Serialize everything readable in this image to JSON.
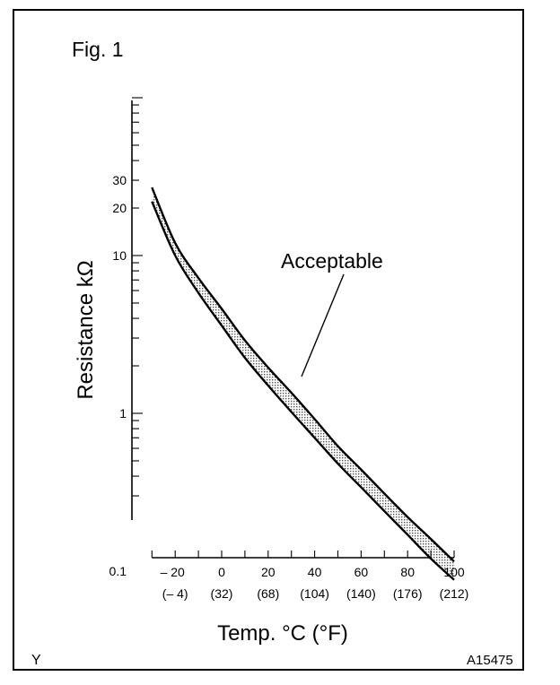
{
  "figure": {
    "label": "Fig. 1",
    "corner_left": "Y",
    "corner_right": "A15475"
  },
  "chart_data": {
    "type": "area",
    "ylabel": "Resistance kΩ",
    "xlabel": "Temp. °C (°F)",
    "yscale": "log",
    "ylim": [
      0.1,
      100
    ],
    "y_ticks": [
      {
        "value": 0.1,
        "label": "0.1"
      },
      {
        "value": 1,
        "label": "1"
      },
      {
        "value": 10,
        "label": "10"
      },
      {
        "value": 20,
        "label": "20"
      },
      {
        "value": 30,
        "label": "30"
      }
    ],
    "xlim": [
      -30,
      100
    ],
    "x_ticks": [
      {
        "value": -20,
        "label": "– 20",
        "label_f": "(– 4)"
      },
      {
        "value": 0,
        "label": "0",
        "label_f": "(32)"
      },
      {
        "value": 20,
        "label": "20",
        "label_f": "(68)"
      },
      {
        "value": 40,
        "label": "40",
        "label_f": "(104)"
      },
      {
        "value": 60,
        "label": "60",
        "label_f": "(140)"
      },
      {
        "value": 80,
        "label": "80",
        "label_f": "(176)"
      },
      {
        "value": 100,
        "label": "100",
        "label_f": "(212)"
      }
    ],
    "annotation": "Acceptable",
    "series": [
      {
        "x": [
          -30,
          -20,
          -10,
          0,
          10,
          20,
          30,
          40,
          50,
          60,
          70,
          80,
          90,
          100
        ],
        "values": [
          27,
          12,
          7.2,
          4.6,
          2.9,
          1.95,
          1.35,
          0.92,
          0.62,
          0.44,
          0.31,
          0.22,
          0.16,
          0.115
        ]
      },
      {
        "x": [
          -30,
          -20,
          -10,
          0,
          10,
          20,
          30,
          40,
          50,
          60,
          70,
          80,
          90,
          100
        ],
        "values": [
          22,
          10,
          5.8,
          3.6,
          2.25,
          1.5,
          1.02,
          0.7,
          0.48,
          0.34,
          0.24,
          0.17,
          0.12,
          0.088
        ]
      }
    ]
  }
}
